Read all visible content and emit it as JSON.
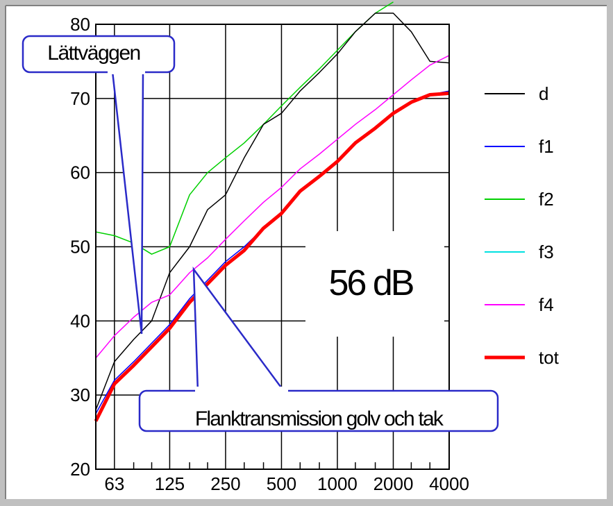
{
  "chart_data": {
    "type": "line",
    "x_ticks": [
      "63",
      "125",
      "250",
      "500",
      "1000",
      "2000",
      "4000"
    ],
    "y_ticks": [
      "20",
      "30",
      "40",
      "50",
      "60",
      "70",
      "80"
    ],
    "ylim": [
      20,
      80
    ],
    "x_is_log": true,
    "grid": true,
    "legend_position": "right",
    "series": [
      {
        "name": "d",
        "color": "#000000",
        "x": [
          50,
          63,
          80,
          100,
          125,
          160,
          200,
          250,
          315,
          400,
          500,
          630,
          800,
          1000,
          1250,
          1600,
          2000,
          2500,
          3150,
          4000
        ],
        "y": [
          28,
          34.5,
          37.5,
          40,
          46.5,
          50,
          55,
          57,
          62,
          66.5,
          68,
          71,
          73.5,
          76,
          79,
          81.5,
          81.5,
          79,
          75,
          74.8
        ]
      },
      {
        "name": "f1",
        "color": "#0000ff",
        "x": [
          50,
          63,
          80,
          100,
          125,
          160,
          200,
          250,
          315,
          400,
          500,
          630,
          800,
          1000,
          1250,
          1600,
          2000,
          2500,
          3150,
          4000
        ],
        "y": [
          27.5,
          32,
          34.5,
          37,
          39.5,
          43,
          45.5,
          48,
          50,
          52.5,
          54.5,
          57.5,
          59.5,
          61.5,
          64,
          66,
          68,
          69.5,
          70.5,
          71
        ]
      },
      {
        "name": "f2",
        "color": "#00d000",
        "x": [
          50,
          63,
          80,
          100,
          125,
          160,
          200,
          250,
          315,
          400,
          500,
          630,
          800,
          1000,
          1250,
          1600,
          2000
        ],
        "y": [
          52,
          51.5,
          50.5,
          49,
          50,
          57,
          60,
          62,
          64,
          66.5,
          69,
          71.5,
          74,
          76.5,
          79,
          81.5,
          83
        ]
      },
      {
        "name": "f3",
        "color": "#00e0e0",
        "x": [],
        "y": []
      },
      {
        "name": "f4",
        "color": "#ff00ff",
        "x": [
          50,
          63,
          80,
          100,
          125,
          160,
          200,
          250,
          315,
          400,
          500,
          630,
          800,
          1000,
          1250,
          1600,
          2000,
          2500,
          3150,
          4000
        ],
        "y": [
          35,
          38,
          40.5,
          42.5,
          43.5,
          46.5,
          48.5,
          51,
          53.5,
          56,
          58,
          60.5,
          62.5,
          64.5,
          66.5,
          68.5,
          70.5,
          72.5,
          74.5,
          75.8
        ]
      },
      {
        "name": "tot",
        "color": "#ff0000",
        "x": [
          50,
          63,
          80,
          100,
          125,
          160,
          200,
          250,
          315,
          400,
          500,
          630,
          800,
          1000,
          1250,
          1600,
          2000,
          2500,
          3150,
          4000
        ],
        "y": [
          26.5,
          31.5,
          34,
          36.5,
          39,
          42.5,
          45,
          47.5,
          49.5,
          52.5,
          54.5,
          57.5,
          59.5,
          61.5,
          64,
          66,
          68,
          69.5,
          70.5,
          70.7
        ]
      }
    ],
    "annotations": [
      {
        "text": "Lättväggen"
      },
      {
        "text": "56 dB"
      },
      {
        "text": "Flanktransmission golv och tak"
      }
    ]
  }
}
